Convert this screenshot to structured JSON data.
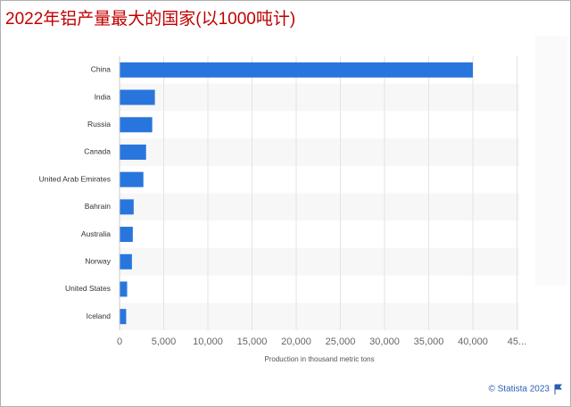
{
  "chart_data": {
    "type": "bar",
    "orientation": "horizontal",
    "title": "2022年铝产量最大的国家(以1000吨计)",
    "categories": [
      "China",
      "India",
      "Russia",
      "Canada",
      "United Arab Emirates",
      "Bahrain",
      "Australia",
      "Norway",
      "United States",
      "Iceland"
    ],
    "values": [
      40000,
      4000,
      3700,
      3000,
      2700,
      1600,
      1500,
      1400,
      860,
      750
    ],
    "color": "#2876dd",
    "xlim": [
      0,
      45000
    ],
    "xticks": [
      0,
      {
        "value": 5000,
        "label": "5,000"
      },
      {
        "value": 10000,
        "label": "10,000"
      },
      {
        "value": 15000,
        "label": "15,000"
      },
      {
        "value": 20000,
        "label": "20,000"
      },
      {
        "value": 25000,
        "label": "25,000"
      },
      {
        "value": 30000,
        "label": "30,000"
      },
      {
        "value": 35000,
        "label": "35,000"
      },
      {
        "value": 40000,
        "label": "40,000"
      },
      {
        "value": 45000,
        "label": "45..."
      }
    ],
    "xlabel": "Production in thousand metric tons",
    "grid": true,
    "credit": "© Statista 2023"
  }
}
